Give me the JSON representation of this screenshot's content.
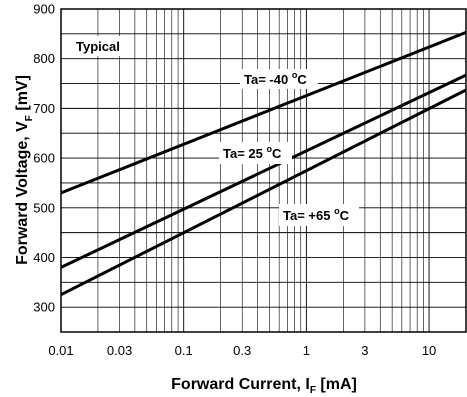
{
  "chart_data": {
    "type": "line",
    "x_scale": "log",
    "y_scale": "linear",
    "xlim": [
      0.01,
      20
    ],
    "ylim": [
      250,
      900
    ],
    "x_ticks": [
      0.01,
      0.03,
      0.1,
      0.3,
      1,
      3,
      10
    ],
    "x_tick_labels": [
      "0.01",
      "0.03",
      "0.1",
      "0.3",
      "1",
      "3",
      "10"
    ],
    "y_ticks": [
      300,
      400,
      500,
      600,
      700,
      800,
      900
    ],
    "y_tick_labels": [
      "300",
      "400",
      "500",
      "600",
      "700",
      "800",
      "900"
    ],
    "grid": true,
    "xlabel": {
      "main": "Forward Current, I",
      "sub": "F",
      "unit": " [mA]"
    },
    "ylabel": {
      "main": "Forward Voltage, V",
      "sub": "F",
      "unit": " [mV]"
    },
    "corner_label": "Typical",
    "series": [
      {
        "id": "minus40",
        "label": {
          "prefix": "Ta= -40 ",
          "deg": "o",
          "suffix": "C"
        },
        "x": [
          0.01,
          20
        ],
        "y": [
          530,
          853
        ]
      },
      {
        "id": "plus25",
        "label": {
          "prefix": "Ta= 25 ",
          "deg": "o",
          "suffix": "C"
        },
        "x": [
          0.01,
          20
        ],
        "y": [
          380,
          767
        ]
      },
      {
        "id": "plus65",
        "label": {
          "prefix": "Ta= +65 ",
          "deg": "o",
          "suffix": "C"
        },
        "x": [
          0.01,
          20
        ],
        "y": [
          325,
          737
        ]
      }
    ]
  }
}
